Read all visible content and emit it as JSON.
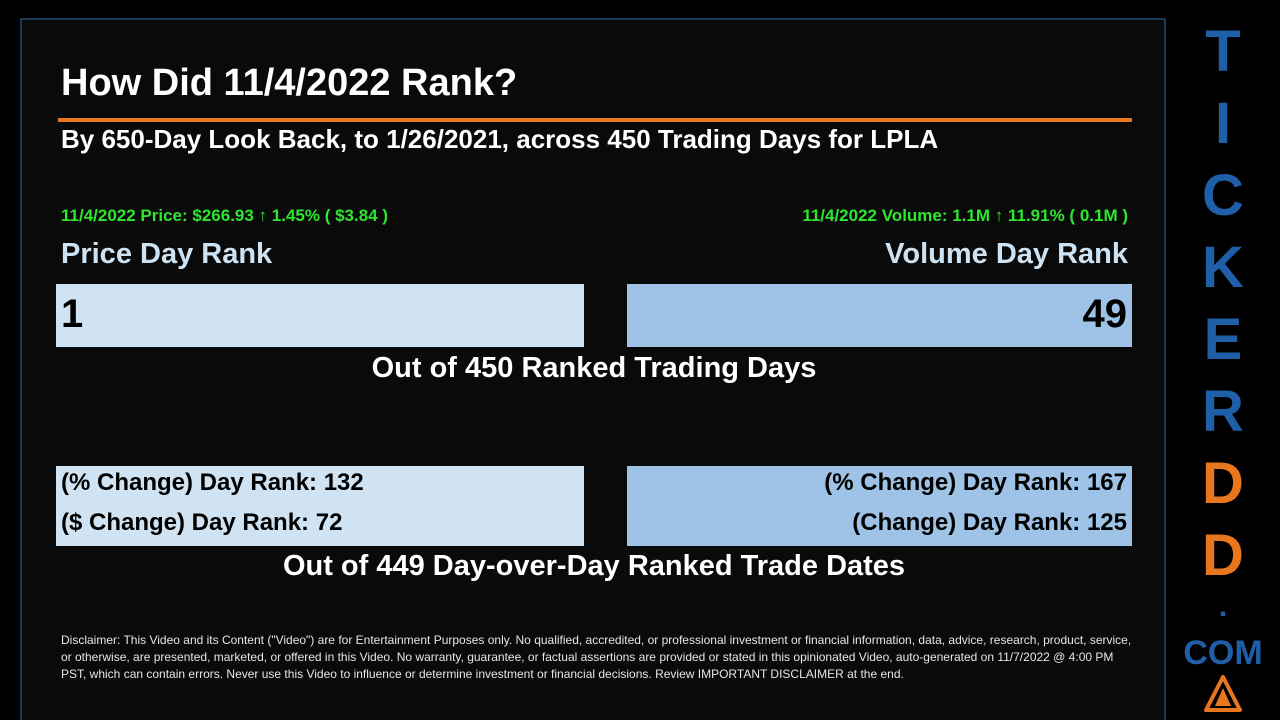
{
  "header": {
    "title": "How Did 11/4/2022 Rank?",
    "subtitle": "By 650-Day Look Back, to 1/26/2021, across 450 Trading Days for LPLA"
  },
  "price": {
    "stat": "11/4/2022 Price: $266.93 ↑ 1.45% ( $3.84 )",
    "label": "Price Day Rank",
    "rank": "1"
  },
  "volume": {
    "stat": "11/4/2022 Volume: 1.1M ↑ 11.91% ( 0.1M )",
    "label": "Volume Day Rank",
    "rank": "49"
  },
  "captions": {
    "ranked_days": "Out of 450 Ranked Trading Days",
    "ranked_dates": "Out of 449 Day-over-Day Ranked Trade Dates"
  },
  "changes": {
    "price_pct": "(% Change) Day Rank: 132",
    "price_dollar": "($ Change) Day Rank: 72",
    "volume_pct": "(% Change) Day Rank: 167",
    "volume_change": "(Change) Day Rank: 125"
  },
  "disclaimer": "Disclaimer: This Video and its Content (\"Video\") are for Entertainment Purposes only. No qualified, accredited, or professional investment or financial information, data, advice, research, product, service, or otherwise, are presented, marketed, or offered in this Video. No warranty, guarantee, or factual assertions are provided or stated in this opinionated Video, auto-generated on 11/7/2022 @ 4:00 PM PST, which can contain errors. Never use this Video to influence or determine investment or financial decisions. Review IMPORTANT DISCLAIMER at the end.",
  "brand": {
    "letters": [
      "T",
      "I",
      "C",
      "K",
      "E",
      "R",
      "D",
      "D"
    ],
    "dot": ".",
    "com": "COM",
    "blue": "#1f5fa8",
    "orange": "#e8761f",
    "logo_icon": "warning-triangle-icon"
  },
  "colors": {
    "accent_rule": "#e8761f",
    "stat_green": "#2ee62e",
    "price_bar": "#d0e3f2",
    "volume_bar": "#9ec3e6"
  }
}
